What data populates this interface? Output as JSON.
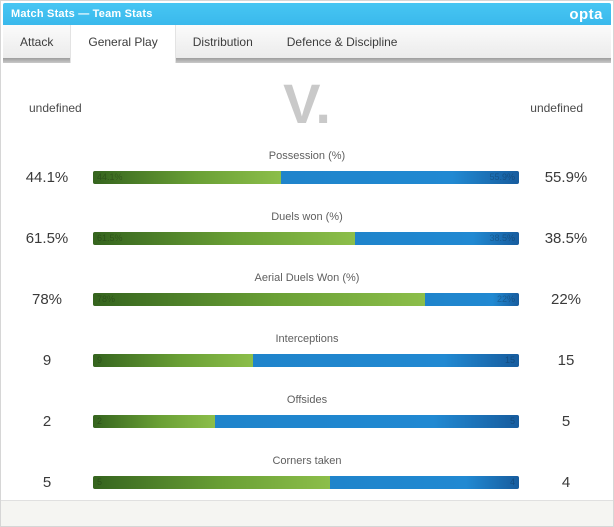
{
  "header": {
    "title": "Match Stats — Team Stats",
    "brand": "opta",
    "accent_color": "#3fbfef"
  },
  "tabs": [
    {
      "label": "Attack",
      "active": false
    },
    {
      "label": "General Play",
      "active": true
    },
    {
      "label": "Distribution",
      "active": false
    },
    {
      "label": "Defence & Discipline",
      "active": false
    }
  ],
  "teams": {
    "home": "undefined",
    "away": "undefined",
    "separator": "V."
  },
  "colors": {
    "home_bar": "#6aa035",
    "away_bar": "#2189d2"
  },
  "chart_data": {
    "type": "bar",
    "title": "Match Stats — Team Stats",
    "legend_position": "none",
    "rows": [
      {
        "label": "Possession (%)",
        "home_display": "44.1%",
        "away_display": "55.9%",
        "home_value": 44.1,
        "away_value": 55.9
      },
      {
        "label": "Duels won (%)",
        "home_display": "61.5%",
        "away_display": "38.5%",
        "home_value": 61.5,
        "away_value": 38.5
      },
      {
        "label": "Aerial Duels Won (%)",
        "home_display": "78%",
        "away_display": "22%",
        "home_value": 78,
        "away_value": 22
      },
      {
        "label": "Interceptions",
        "home_display": "9",
        "away_display": "15",
        "home_value": 9,
        "away_value": 15
      },
      {
        "label": "Offsides",
        "home_display": "2",
        "away_display": "5",
        "home_value": 2,
        "away_value": 5
      },
      {
        "label": "Corners taken",
        "home_display": "5",
        "away_display": "4",
        "home_value": 5,
        "away_value": 4
      }
    ]
  }
}
